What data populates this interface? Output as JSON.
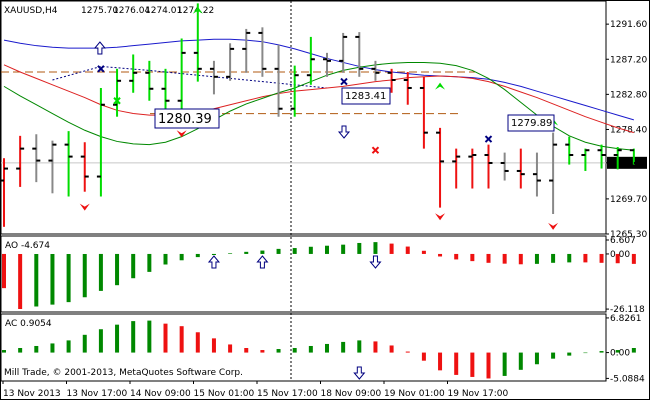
{
  "symbol_title": "XAUUSD,H4",
  "ohlc": {
    "open": "1275.70",
    "high": "1276.04",
    "low": "1274.01",
    "close": "1274.22"
  },
  "current_price_label": "1274.22",
  "level_labels": [
    {
      "text": "1280.39",
      "price": 1280.39
    },
    {
      "text": "1283.41",
      "price": 1283.41
    },
    {
      "text": "1279.89",
      "price": 1279.89
    }
  ],
  "copyright": "Mill Trade, © 2001-2013, MetaQuotes Software Corp.",
  "colors": {
    "bull": "#00dd00",
    "bear": "#ee1111",
    "neutral": "#888888",
    "ao_up": "#008800",
    "ao_down": "#ee1111",
    "ma_blue": "#1a1acc",
    "ma_red": "#dd2222",
    "ma_green": "#008800",
    "level_line": "#b05a10",
    "marker": "#000080",
    "grid": "#c8c8c8"
  },
  "chart_data": [
    {
      "type": "ohlc",
      "name": "XAUUSD,H4",
      "ylim": [
        1265.3,
        1294.5
      ],
      "y_ticks": [
        "1291.60",
        "1287.20",
        "1282.80",
        "1278.40",
        "1274.22",
        "1269.70",
        "1265.30"
      ],
      "x_ticks": [
        "13 Nov 2013",
        "13 Nov 17:00",
        "14 Nov 09:00",
        "15 Nov 01:00",
        "15 Nov 17:00",
        "18 Nov 09:00",
        "19 Nov 01:00",
        "19 Nov 17:00"
      ],
      "bars": [
        {
          "o": 1272.0,
          "h": 1274.8,
          "l": 1266.2,
          "c": 1273.5,
          "color": "bear"
        },
        {
          "o": 1273.5,
          "h": 1277.6,
          "l": 1271.2,
          "c": 1276.0,
          "color": "bear"
        },
        {
          "o": 1276.0,
          "h": 1277.8,
          "l": 1271.8,
          "c": 1274.5,
          "color": "neutral"
        },
        {
          "o": 1274.5,
          "h": 1277.0,
          "l": 1270.4,
          "c": 1276.5,
          "color": "neutral"
        },
        {
          "o": 1276.5,
          "h": 1278.2,
          "l": 1270.0,
          "c": 1275.0,
          "color": "bull"
        },
        {
          "o": 1275.0,
          "h": 1276.8,
          "l": 1270.6,
          "c": 1272.5,
          "color": "bear"
        },
        {
          "o": 1272.5,
          "h": 1283.6,
          "l": 1270.0,
          "c": 1281.5,
          "color": "bull"
        },
        {
          "o": 1281.5,
          "h": 1286.0,
          "l": 1280.0,
          "c": 1284.5,
          "color": "bull"
        },
        {
          "o": 1284.5,
          "h": 1287.8,
          "l": 1283.0,
          "c": 1285.5,
          "color": "bull"
        },
        {
          "o": 1285.5,
          "h": 1287.0,
          "l": 1282.0,
          "c": 1283.5,
          "color": "bull"
        },
        {
          "o": 1283.5,
          "h": 1286.0,
          "l": 1280.0,
          "c": 1282.0,
          "color": "bull"
        },
        {
          "o": 1282.0,
          "h": 1289.8,
          "l": 1280.4,
          "c": 1288.0,
          "color": "bull"
        },
        {
          "o": 1288.0,
          "h": 1294.2,
          "l": 1284.4,
          "c": 1286.0,
          "color": "bull"
        },
        {
          "o": 1286.0,
          "h": 1287.0,
          "l": 1282.8,
          "c": 1285.0,
          "color": "neutral"
        },
        {
          "o": 1285.0,
          "h": 1289.2,
          "l": 1284.5,
          "c": 1288.5,
          "color": "neutral"
        },
        {
          "o": 1288.5,
          "h": 1291.0,
          "l": 1285.5,
          "c": 1290.5,
          "color": "neutral"
        },
        {
          "o": 1290.5,
          "h": 1291.2,
          "l": 1285.0,
          "c": 1286.0,
          "color": "neutral"
        },
        {
          "o": 1286.0,
          "h": 1289.0,
          "l": 1280.0,
          "c": 1281.0,
          "color": "neutral"
        },
        {
          "o": 1281.0,
          "h": 1286.4,
          "l": 1280.0,
          "c": 1285.2,
          "color": "bull"
        },
        {
          "o": 1285.2,
          "h": 1290.0,
          "l": 1284.0,
          "c": 1287.2,
          "color": "bull"
        },
        {
          "o": 1287.2,
          "h": 1288.0,
          "l": 1285.0,
          "c": 1287.0,
          "color": "neutral"
        },
        {
          "o": 1287.0,
          "h": 1290.5,
          "l": 1285.5,
          "c": 1290.0,
          "color": "neutral"
        },
        {
          "o": 1290.0,
          "h": 1290.6,
          "l": 1285.0,
          "c": 1286.0,
          "color": "neutral"
        },
        {
          "o": 1286.0,
          "h": 1287.0,
          "l": 1284.5,
          "c": 1285.5,
          "color": "neutral"
        },
        {
          "o": 1285.5,
          "h": 1286.0,
          "l": 1283.0,
          "c": 1284.6,
          "color": "bear"
        },
        {
          "o": 1284.6,
          "h": 1285.6,
          "l": 1281.5,
          "c": 1283.6,
          "color": "bear"
        },
        {
          "o": 1283.6,
          "h": 1285.0,
          "l": 1276.0,
          "c": 1278.0,
          "color": "bear"
        },
        {
          "o": 1278.0,
          "h": 1278.6,
          "l": 1268.6,
          "c": 1274.4,
          "color": "bear"
        },
        {
          "o": 1274.4,
          "h": 1276.0,
          "l": 1271.0,
          "c": 1275.0,
          "color": "bear"
        },
        {
          "o": 1275.0,
          "h": 1276.0,
          "l": 1271.0,
          "c": 1275.2,
          "color": "bear"
        },
        {
          "o": 1275.2,
          "h": 1276.5,
          "l": 1271.0,
          "c": 1274.2,
          "color": "bear"
        },
        {
          "o": 1274.2,
          "h": 1275.5,
          "l": 1272.0,
          "c": 1273.2,
          "color": "neutral"
        },
        {
          "o": 1273.2,
          "h": 1276.0,
          "l": 1271.0,
          "c": 1272.8,
          "color": "bear"
        },
        {
          "o": 1272.8,
          "h": 1275.5,
          "l": 1270.0,
          "c": 1272.0,
          "color": "neutral"
        },
        {
          "o": 1272.0,
          "h": 1278.0,
          "l": 1267.8,
          "c": 1276.5,
          "color": "neutral"
        },
        {
          "o": 1276.5,
          "h": 1277.5,
          "l": 1274.0,
          "c": 1275.2,
          "color": "bull"
        },
        {
          "o": 1275.2,
          "h": 1276.0,
          "l": 1273.2,
          "c": 1275.8,
          "color": "bull"
        },
        {
          "o": 1275.8,
          "h": 1276.5,
          "l": 1273.5,
          "c": 1275.2,
          "color": "bull"
        },
        {
          "o": 1275.2,
          "h": 1276.2,
          "l": 1273.4,
          "c": 1275.8,
          "color": "bull"
        },
        {
          "o": 1275.8,
          "h": 1276.0,
          "l": 1274.0,
          "c": 1274.2,
          "color": "bull"
        }
      ],
      "moving_averages": [
        {
          "color": "ma_blue",
          "values": [
            1289.6,
            1289.2,
            1288.9,
            1288.7,
            1288.6,
            1288.6,
            1288.6,
            1288.7,
            1288.9,
            1289.1,
            1289.3,
            1289.5,
            1289.6,
            1289.7,
            1289.7,
            1289.6,
            1289.4,
            1289.0,
            1288.5,
            1287.9,
            1287.3,
            1286.8,
            1286.3,
            1285.9,
            1285.6,
            1285.4,
            1285.2,
            1285.1,
            1285.0,
            1284.9,
            1284.7,
            1284.3,
            1283.8,
            1283.2,
            1282.6,
            1282.0,
            1281.4,
            1280.8,
            1280.2,
            1279.6
          ]
        },
        {
          "color": "ma_red",
          "values": [
            1286.5,
            1285.6,
            1284.8,
            1284.0,
            1283.2,
            1282.4,
            1281.5,
            1280.8,
            1280.4,
            1280.2,
            1280.2,
            1280.3,
            1280.6,
            1281.0,
            1281.5,
            1282.0,
            1282.5,
            1282.9,
            1283.2,
            1283.4,
            1283.6,
            1283.8,
            1284.1,
            1284.4,
            1284.6,
            1284.9,
            1285.0,
            1285.1,
            1285.0,
            1284.8,
            1284.4,
            1283.8,
            1283.1,
            1282.4,
            1281.6,
            1280.8,
            1280.0,
            1279.3,
            1278.6,
            1278.0
          ]
        },
        {
          "color": "ma_green",
          "values": [
            1283.8,
            1282.6,
            1281.5,
            1280.4,
            1279.3,
            1278.3,
            1277.5,
            1276.9,
            1276.6,
            1276.5,
            1276.8,
            1277.5,
            1278.5,
            1279.6,
            1280.7,
            1281.6,
            1282.3,
            1283.0,
            1283.6,
            1284.4,
            1285.2,
            1285.8,
            1286.2,
            1286.5,
            1286.7,
            1286.8,
            1286.8,
            1286.7,
            1286.4,
            1285.8,
            1284.8,
            1283.4,
            1281.8,
            1280.2,
            1278.8,
            1277.6,
            1276.8,
            1276.3,
            1276.0,
            1275.8
          ]
        }
      ],
      "fractals_up": [
        {
          "bar": 12,
          "price": 1293.4
        },
        {
          "bar": 27,
          "price": 1283.9
        },
        {
          "bar": 34,
          "price": 1279.4
        }
      ],
      "fractals_down": [
        {
          "bar": 5,
          "price": 1268.6
        },
        {
          "bar": 11,
          "price": 1277.8
        },
        {
          "bar": 27,
          "price": 1267.4
        },
        {
          "bar": 34,
          "price": 1266.2
        }
      ]
    },
    {
      "type": "bar",
      "name": "AO",
      "title": "AO -4.674",
      "ylim": [
        -27.5,
        8.5
      ],
      "y_ticks": [
        "6.607",
        "0.00",
        "-26.118"
      ],
      "values": [
        -16.2,
        -26.1,
        -24.9,
        -24.0,
        -22.8,
        -20.5,
        -17.5,
        -14.8,
        -11.5,
        -8.5,
        -5.0,
        -3.0,
        -1.5,
        -0.5,
        0.3,
        1.0,
        1.6,
        2.4,
        2.8,
        3.4,
        3.9,
        4.4,
        5.2,
        5.6,
        4.9,
        3.5,
        1.5,
        -1.2,
        -2.6,
        -3.4,
        -4.2,
        -4.6,
        -4.9,
        -4.7,
        -4.2,
        -4.0,
        -4.0,
        -4.2,
        -4.4,
        -4.7
      ],
      "bar_colors": [
        "ao_down",
        "ao_down",
        "ao_up",
        "ao_up",
        "ao_up",
        "ao_up",
        "ao_up",
        "ao_up",
        "ao_up",
        "ao_up",
        "ao_up",
        "ao_up",
        "ao_up",
        "ao_up",
        "ao_up",
        "ao_up",
        "ao_up",
        "ao_up",
        "ao_up",
        "ao_up",
        "ao_up",
        "ao_up",
        "ao_up",
        "ao_up",
        "ao_down",
        "ao_down",
        "ao_down",
        "ao_down",
        "ao_down",
        "ao_down",
        "ao_down",
        "ao_down",
        "ao_down",
        "ao_up",
        "ao_up",
        "ao_up",
        "ao_down",
        "ao_down",
        "ao_down",
        "ao_down"
      ]
    },
    {
      "type": "bar",
      "name": "AC",
      "title": "AC 0.9054",
      "ylim": [
        -5.6,
        7.6
      ],
      "y_ticks": [
        "6.8261",
        "0.00",
        "-5.0884"
      ],
      "values": [
        0.5,
        0.9,
        1.3,
        1.8,
        2.4,
        3.5,
        4.6,
        5.5,
        6.2,
        6.3,
        5.7,
        5.2,
        4.0,
        2.8,
        1.6,
        0.9,
        0.5,
        0.7,
        0.9,
        1.3,
        1.7,
        2.1,
        2.4,
        2.2,
        1.4,
        0.2,
        -1.6,
        -3.5,
        -4.4,
        -4.8,
        -5.1,
        -4.6,
        -3.4,
        -2.3,
        -1.2,
        -0.6,
        -0.1,
        0.3,
        0.5,
        0.9
      ],
      "bar_colors": [
        "ao_up",
        "ao_up",
        "ao_up",
        "ao_up",
        "ao_up",
        "ao_up",
        "ao_up",
        "ao_up",
        "ao_up",
        "ao_up",
        "ao_down",
        "ao_down",
        "ao_down",
        "ao_down",
        "ao_down",
        "ao_down",
        "ao_down",
        "ao_up",
        "ao_up",
        "ao_up",
        "ao_up",
        "ao_up",
        "ao_up",
        "ao_down",
        "ao_down",
        "ao_down",
        "ao_down",
        "ao_down",
        "ao_down",
        "ao_down",
        "ao_down",
        "ao_up",
        "ao_up",
        "ao_up",
        "ao_up",
        "ao_up",
        "ao_up",
        "ao_up",
        "ao_up",
        "ao_up"
      ]
    }
  ]
}
